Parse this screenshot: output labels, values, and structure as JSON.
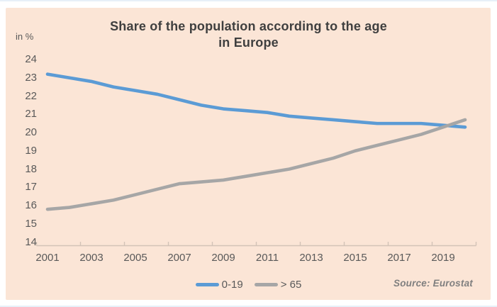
{
  "header": {
    "title_line1": "Share of the population according to the age",
    "title_line2": "in Europe"
  },
  "chart_data": {
    "type": "line",
    "title": "Share of the population according to the age in Europe",
    "unit_label": "in %",
    "xlabel": "",
    "ylabel": "in %",
    "ylim": [
      14,
      24
    ],
    "grid": false,
    "legend_position": "bottom-center",
    "x": [
      2001,
      2002,
      2003,
      2004,
      2005,
      2006,
      2007,
      2008,
      2009,
      2010,
      2011,
      2012,
      2013,
      2014,
      2015,
      2016,
      2017,
      2018,
      2019,
      2020
    ],
    "series": [
      {
        "name": "0-19",
        "color": "#5B9BD5",
        "values": [
          23.2,
          23.0,
          22.8,
          22.5,
          22.3,
          22.1,
          21.8,
          21.5,
          21.3,
          21.2,
          21.1,
          20.9,
          20.8,
          20.7,
          20.6,
          20.5,
          20.5,
          20.5,
          20.4,
          20.3
        ]
      },
      {
        "name": "> 65",
        "color": "#A6A6A6",
        "values": [
          15.8,
          15.9,
          16.1,
          16.3,
          16.6,
          16.9,
          17.2,
          17.3,
          17.4,
          17.6,
          17.8,
          18.0,
          18.3,
          18.6,
          19.0,
          19.3,
          19.6,
          19.9,
          20.3,
          20.7
        ]
      }
    ],
    "y_ticks": [
      24,
      23,
      22,
      21,
      20,
      19,
      18,
      17,
      16,
      15,
      14
    ],
    "x_tick_labels": [
      "2001",
      "2003",
      "2005",
      "2007",
      "2009",
      "2011",
      "2013",
      "2015",
      "2017",
      "2019"
    ],
    "source": "Source: Eurostat"
  },
  "colors": {
    "background": "#FBE5D6",
    "page": "#FFFFFF",
    "title_text": "#3F3F3F",
    "axis_text": "#595959",
    "axis_line": "#D3C3B7",
    "series_blue": "#5B9BD5",
    "series_gray": "#A6A6A6",
    "source_text": "#7F7F7F"
  }
}
